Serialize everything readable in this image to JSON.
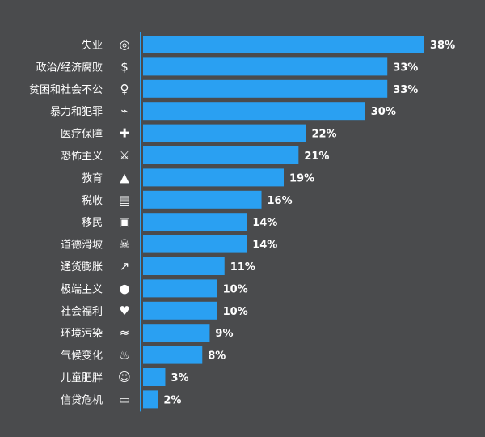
{
  "chart_data": {
    "type": "bar",
    "orientation": "horizontal",
    "categories": [
      "失业",
      "政治/经济腐败",
      "贫困和社会不公",
      "暴力和犯罪",
      "医疗保障",
      "恐怖主义",
      "教育",
      "税收",
      "移民",
      "道德滑坡",
      "通货膨胀",
      "极端主义",
      "社会福利",
      "环境污染",
      "气候变化",
      "儿童肥胖",
      "信贷危机"
    ],
    "values": [
      38,
      33,
      33,
      30,
      22,
      21,
      19,
      16,
      14,
      14,
      11,
      10,
      10,
      9,
      8,
      3,
      2
    ],
    "value_labels": [
      "38%",
      "33%",
      "33%",
      "30%",
      "22%",
      "21%",
      "19%",
      "16%",
      "14%",
      "14%",
      "11%",
      "10%",
      "10%",
      "9%",
      "8%",
      "3%",
      "2%"
    ],
    "xlim": [
      0,
      38
    ],
    "grid": false,
    "legend": "none",
    "title": "",
    "xlabel": "",
    "ylabel": ""
  },
  "icons": [
    "binoculars-icon",
    "money-bag-icon",
    "person-icon",
    "revolver-icon",
    "nurse-cap-icon",
    "crossed-weapons-icon",
    "graduation-cap-icon",
    "tax-form-icon",
    "suitcase-icon",
    "fighting-people-icon",
    "rising-chart-icon",
    "balaclava-icon",
    "aid-hand-icon",
    "polluted-water-icon",
    "fire-icon",
    "obese-child-icon",
    "credit-card-icon"
  ],
  "colors": {
    "background": "#4a4b4d",
    "bar": "#2aa0f2",
    "text": "#ffffff",
    "axis": "#2aa0f2"
  }
}
